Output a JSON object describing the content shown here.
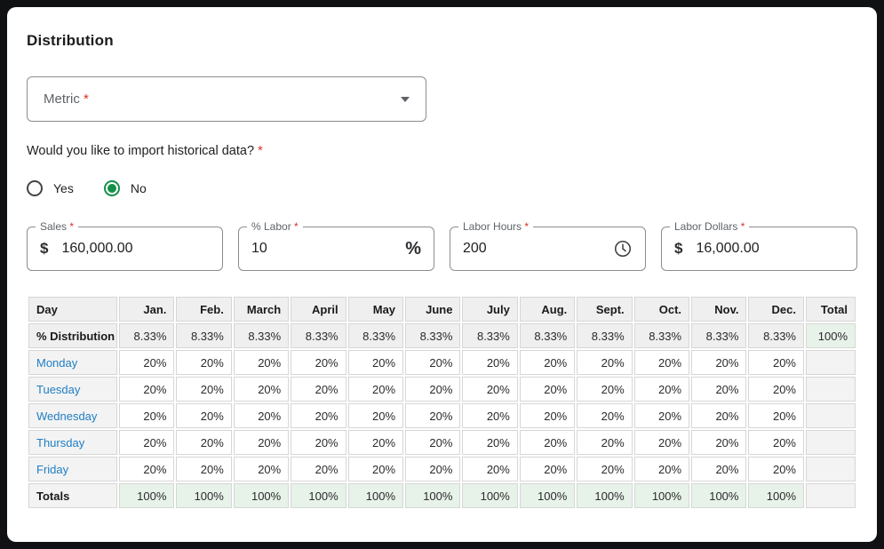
{
  "page": {
    "title": "Distribution"
  },
  "required_mark": "*",
  "metric_select": {
    "label": "Metric"
  },
  "question": {
    "text": "Would you like to import historical data?",
    "options": [
      {
        "label": "Yes",
        "selected": false
      },
      {
        "label": "No",
        "selected": true
      }
    ]
  },
  "fields": [
    {
      "name": "sales",
      "label": "Sales",
      "prefix": "$",
      "value": "160,000.00"
    },
    {
      "name": "percent-labor",
      "label": "% Labor",
      "value": "10",
      "suffix": "%"
    },
    {
      "name": "labor-hours",
      "label": "Labor Hours",
      "value": "200",
      "icon": "clock-icon"
    },
    {
      "name": "labor-dollars",
      "label": "Labor Dollars",
      "prefix": "$",
      "value": "16,000.00"
    }
  ],
  "table": {
    "columns": [
      "Day",
      "Jan.",
      "Feb.",
      "March",
      "April",
      "May",
      "June",
      "July",
      "Aug.",
      "Sept.",
      "Oct.",
      "Nov.",
      "Dec.",
      "Total"
    ],
    "rows": [
      {
        "label": "% Distribution",
        "type": "distribution",
        "values": [
          "8.33%",
          "8.33%",
          "8.33%",
          "8.33%",
          "8.33%",
          "8.33%",
          "8.33%",
          "8.33%",
          "8.33%",
          "8.33%",
          "8.33%",
          "8.33%"
        ],
        "total": "100%"
      },
      {
        "label": "Monday",
        "type": "day",
        "values": [
          "20%",
          "20%",
          "20%",
          "20%",
          "20%",
          "20%",
          "20%",
          "20%",
          "20%",
          "20%",
          "20%",
          "20%"
        ],
        "total": ""
      },
      {
        "label": "Tuesday",
        "type": "day",
        "values": [
          "20%",
          "20%",
          "20%",
          "20%",
          "20%",
          "20%",
          "20%",
          "20%",
          "20%",
          "20%",
          "20%",
          "20%"
        ],
        "total": ""
      },
      {
        "label": "Wednesday",
        "type": "day",
        "values": [
          "20%",
          "20%",
          "20%",
          "20%",
          "20%",
          "20%",
          "20%",
          "20%",
          "20%",
          "20%",
          "20%",
          "20%"
        ],
        "total": ""
      },
      {
        "label": "Thursday",
        "type": "day",
        "values": [
          "20%",
          "20%",
          "20%",
          "20%",
          "20%",
          "20%",
          "20%",
          "20%",
          "20%",
          "20%",
          "20%",
          "20%"
        ],
        "total": ""
      },
      {
        "label": "Friday",
        "type": "day",
        "values": [
          "20%",
          "20%",
          "20%",
          "20%",
          "20%",
          "20%",
          "20%",
          "20%",
          "20%",
          "20%",
          "20%",
          "20%"
        ],
        "total": ""
      },
      {
        "label": "Totals",
        "type": "totals",
        "values": [
          "100%",
          "100%",
          "100%",
          "100%",
          "100%",
          "100%",
          "100%",
          "100%",
          "100%",
          "100%",
          "100%",
          "100%"
        ],
        "total": ""
      }
    ]
  },
  "colors": {
    "accent_green": "#14904a",
    "link_blue": "#1f7ec2",
    "required_red": "#d93025",
    "total_green_bg": "#e7f2e9"
  }
}
